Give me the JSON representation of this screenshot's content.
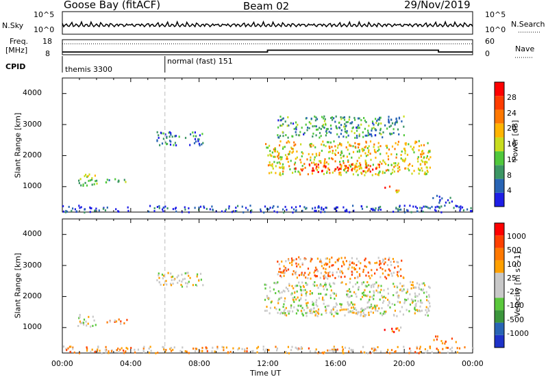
{
  "header": {
    "station": "Goose Bay (fitACF)",
    "beam": "Beam 02",
    "date": "29/Nov/2019"
  },
  "nsky_panel": {
    "left_label": "N.Sky",
    "right_label": "N.Search",
    "left_ticks": [
      "10^5",
      "10^0"
    ],
    "right_ticks": [
      "10^5",
      "10^0"
    ]
  },
  "freq_panel": {
    "left_label_1": "Freq.",
    "left_label_2": "[MHz]",
    "right_label": "Nave",
    "left_ticks": [
      "18",
      "8"
    ],
    "right_ticks": [
      "60",
      "0"
    ],
    "freq_steps": [
      [
        0,
        9.0
      ],
      [
        12,
        9.0
      ],
      [
        12,
        10.3
      ],
      [
        22,
        10.3
      ],
      [
        22,
        9.0
      ],
      [
        24,
        9.0
      ]
    ],
    "nave_level": 0.7
  },
  "cpid_panel": {
    "label": "CPID",
    "segments": [
      {
        "start_hour": 0,
        "text": "themis 3300"
      },
      {
        "start_hour": 6,
        "text": "normal (fast) 151"
      }
    ]
  },
  "time_axis": {
    "label": "Time UT",
    "ticks": [
      "00:00",
      "04:00",
      "08:00",
      "12:00",
      "16:00",
      "20:00",
      "00:00"
    ]
  },
  "colors": {
    "power": [
      "#1e1ee6",
      "#2864b4",
      "#3c9664",
      "#50c83c",
      "#c8dc1e",
      "#ffb400",
      "#ff7800",
      "#ff3c00",
      "#ff0000"
    ],
    "velocity": [
      "#1e32c8",
      "#2864b4",
      "#3c963c",
      "#5ac83c",
      "#c8c8c8",
      "#c8c8c8",
      "#ffa000",
      "#ff7800",
      "#ff4000",
      "#ff0000"
    ]
  },
  "chart_data": [
    {
      "type": "heatmap",
      "title": "Power",
      "xlabel": "Time UT",
      "ylabel": "Slant Range [km]",
      "xlim": [
        0,
        24
      ],
      "ylim": [
        180,
        4500
      ],
      "yticks": [
        "1000",
        "2000",
        "3000",
        "4000"
      ],
      "colorbar_label": "Power [dB]",
      "colorbar_ticks": [
        "4",
        "8",
        "12",
        "16",
        "20",
        "24",
        "28"
      ],
      "regions": [
        {
          "t0": 0,
          "t1": 24,
          "r0": 200,
          "r1": 420,
          "level": 0.1
        },
        {
          "t0": 0.8,
          "t1": 2.0,
          "r0": 1050,
          "r1": 1450,
          "level": 0.4
        },
        {
          "t0": 2.5,
          "t1": 3.8,
          "r0": 1150,
          "r1": 1300,
          "level": 0.35
        },
        {
          "t0": 5.5,
          "t1": 8.2,
          "r0": 2350,
          "r1": 2800,
          "level": 0.2
        },
        {
          "t0": 11.8,
          "t1": 21.5,
          "r0": 1400,
          "r1": 2500,
          "level": 0.55
        },
        {
          "t0": 13.5,
          "t1": 18.5,
          "r0": 1500,
          "r1": 1750,
          "level": 0.85
        },
        {
          "t0": 18.8,
          "t1": 19.8,
          "r0": 850,
          "r1": 1050,
          "level": 0.7
        },
        {
          "t0": 21.5,
          "t1": 23.0,
          "r0": 500,
          "r1": 750,
          "level": 0.2
        },
        {
          "t0": 12.5,
          "t1": 20.0,
          "r0": 2600,
          "r1": 3300,
          "level": 0.3
        }
      ]
    },
    {
      "type": "heatmap",
      "title": "Velocity",
      "xlabel": "Time UT",
      "ylabel": "Slant Range [km]",
      "xlim": [
        0,
        24
      ],
      "ylim": [
        180,
        4500
      ],
      "yticks": [
        "1000",
        "2000",
        "3000",
        "4000"
      ],
      "colorbar_label": "Velocity [m s^-1]",
      "colorbar_ticks": [
        "1000",
        "500",
        "100",
        "25",
        "-25",
        "-100",
        "-500",
        "-1000"
      ],
      "regions": [
        {
          "t0": 0,
          "t1": 24,
          "r0": 200,
          "r1": 420,
          "level": 0.65
        },
        {
          "t0": 0.8,
          "t1": 2.0,
          "r0": 1050,
          "r1": 1450,
          "level": 0.5
        },
        {
          "t0": 2.5,
          "t1": 3.8,
          "r0": 1150,
          "r1": 1300,
          "level": 0.7
        },
        {
          "t0": 5.5,
          "t1": 8.2,
          "r0": 2350,
          "r1": 2800,
          "level": 0.5
        },
        {
          "t0": 11.8,
          "t1": 21.5,
          "r0": 1400,
          "r1": 2500,
          "level": 0.5
        },
        {
          "t0": 13.5,
          "t1": 18.5,
          "r0": 1500,
          "r1": 1750,
          "level": 0.5
        },
        {
          "t0": 18.8,
          "t1": 19.8,
          "r0": 850,
          "r1": 1050,
          "level": 0.75
        },
        {
          "t0": 21.5,
          "t1": 23.0,
          "r0": 500,
          "r1": 750,
          "level": 0.7
        },
        {
          "t0": 12.5,
          "t1": 20.0,
          "r0": 2600,
          "r1": 3300,
          "level": 0.7
        }
      ]
    }
  ]
}
